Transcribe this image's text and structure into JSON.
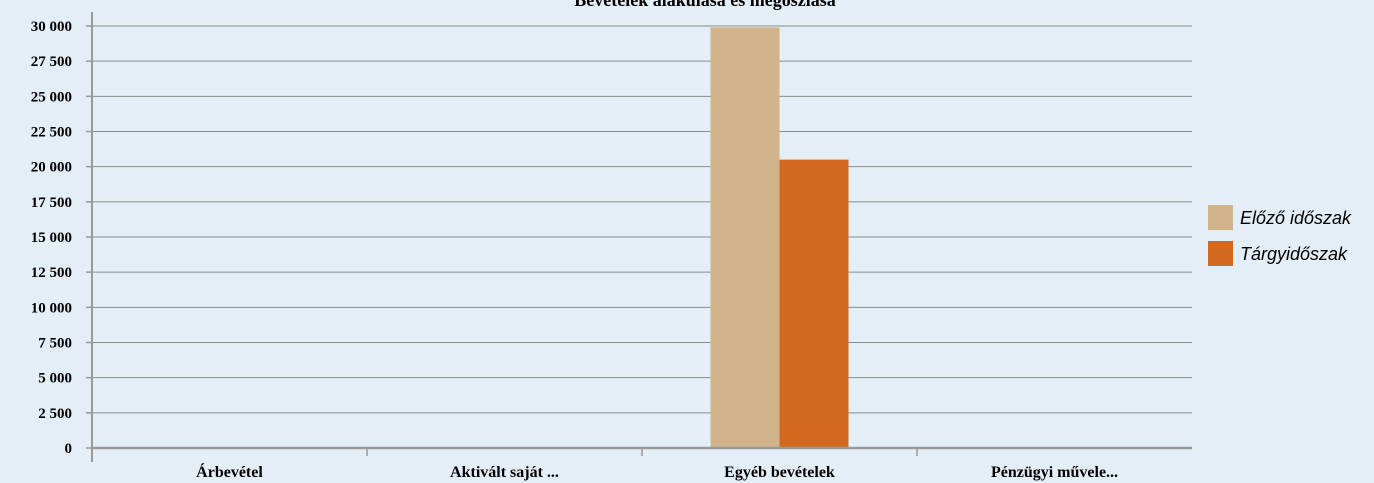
{
  "chart_data": {
    "type": "bar",
    "title": "Bevételek alakulása és megoszlása",
    "categories": [
      "Árbevétel",
      "Aktivált saját ...",
      "Egyéb bevételek",
      "Pénzügyi művele..."
    ],
    "series": [
      {
        "name": "Előző időszak",
        "color": "#d2b48c",
        "values": [
          0,
          0,
          29900,
          0
        ]
      },
      {
        "name": "Tárgyidőszak",
        "color": "#d2691e",
        "values": [
          0,
          0,
          20500,
          0
        ]
      }
    ],
    "ylim": [
      0,
      30000
    ],
    "yticks": [
      0,
      2500,
      5000,
      7500,
      10000,
      12500,
      15000,
      17500,
      20000,
      22500,
      25000,
      27500,
      30000
    ],
    "ytick_labels": [
      "0",
      "2 500",
      "5 000",
      "7 500",
      "10 000",
      "12 500",
      "15 000",
      "17 500",
      "20 000",
      "22 500",
      "25 000",
      "27 500",
      "30 000"
    ],
    "xlabel": "",
    "ylabel": "",
    "grid": true,
    "legend": "right"
  }
}
